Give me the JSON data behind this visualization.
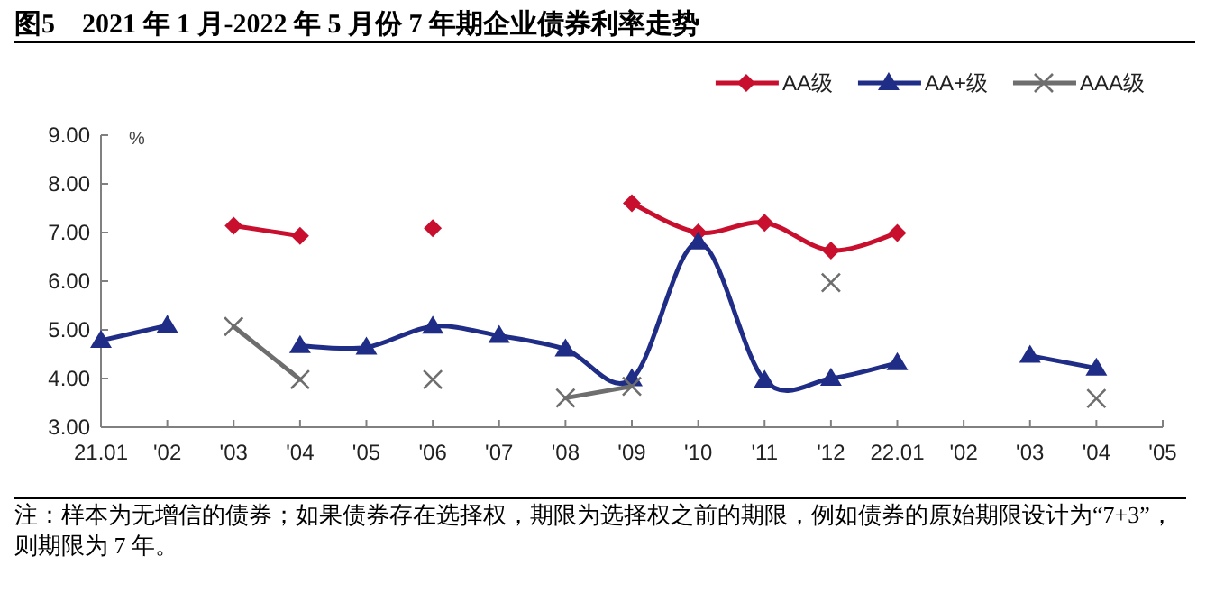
{
  "chart_data": {
    "type": "line",
    "title": "图5　2021 年 1 月-2022 年 5 月份 7 年期企业债券利率走势",
    "ylabel": "%",
    "categories": [
      "21.01",
      "'02",
      "'03",
      "'04",
      "'05",
      "'06",
      "'07",
      "'08",
      "'09",
      "'10",
      "'11",
      "'12",
      "22.01",
      "'02",
      "'03",
      "'04",
      "'05"
    ],
    "series": [
      {
        "name": "AA级",
        "color": "#c8102e",
        "marker": "diamond",
        "values": [
          null,
          null,
          7.14,
          6.93,
          null,
          7.09,
          null,
          null,
          7.6,
          7.0,
          7.2,
          6.63,
          6.99,
          null,
          null,
          null,
          null
        ]
      },
      {
        "name": "AA+级",
        "color": "#1f2d86",
        "marker": "triangle",
        "values": [
          4.78,
          5.09,
          null,
          4.67,
          4.64,
          5.07,
          4.88,
          4.6,
          3.99,
          6.8,
          3.96,
          4.0,
          4.32,
          null,
          4.47,
          4.21,
          null
        ]
      },
      {
        "name": "AAA级",
        "color": "#6e6e6e",
        "marker": "cross",
        "values": [
          null,
          null,
          5.07,
          3.98,
          null,
          3.98,
          null,
          3.6,
          3.84,
          null,
          null,
          5.97,
          null,
          null,
          null,
          3.59,
          null
        ]
      }
    ],
    "ylim": [
      3,
      9
    ],
    "yticks": [
      {
        "value": 3,
        "label": "3.00"
      },
      {
        "value": 4,
        "label": "4.00"
      },
      {
        "value": 5,
        "label": "5.00"
      },
      {
        "value": 6,
        "label": "6.00"
      },
      {
        "value": 7,
        "label": "7.00"
      },
      {
        "value": 8,
        "label": "8.00"
      },
      {
        "value": 9,
        "label": "9.00"
      }
    ],
    "legend": "top right",
    "grid": false,
    "annotations": [
      "注：样本为无增信的债券；如果债券存在选择权，期限为选择权之前的期限，例如债券的原始期限设计为“7+3”，则期限为 7 年。"
    ]
  }
}
